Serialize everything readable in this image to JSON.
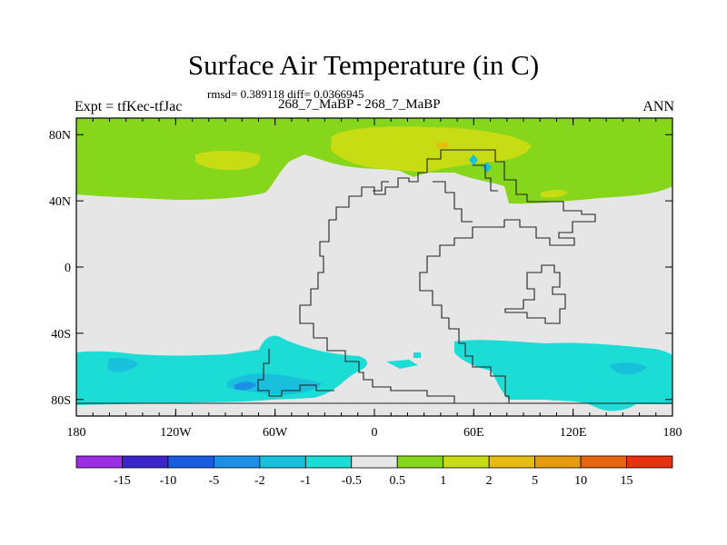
{
  "chart_data": {
    "type": "heatmap",
    "title": "Surface Air Temperature (in C)",
    "subtitle": "268_7_MaBP - 268_7_MaBP",
    "stats": "rmsd= 0.389118 diff= 0.0366945",
    "left_label": "Expt = tfKec-tfJac",
    "right_label": "ANN",
    "x_ticks": [
      "180",
      "120W",
      "60W",
      "0",
      "60E",
      "120E",
      "180"
    ],
    "y_ticks": [
      "80N",
      "40N",
      "0",
      "40S",
      "80S"
    ],
    "x_range": [
      -180,
      180
    ],
    "y_range": [
      -90,
      90
    ],
    "colorbar": {
      "labels": [
        "-15",
        "-10",
        "-5",
        "-2",
        "-1",
        "-0.5",
        "0.5",
        "1",
        "2",
        "5",
        "10",
        "15"
      ],
      "colors": [
        "#9b2ce6",
        "#3b24c9",
        "#1a5ce0",
        "#1e8fe6",
        "#18c0dc",
        "#1cdcd6",
        "#e6e6e6",
        "#86d61c",
        "#c8dc14",
        "#e6bc10",
        "#e69a10",
        "#e6640e",
        "#e6300e"
      ]
    },
    "regions": [
      {
        "level": "0.5 to 1",
        "color": "#86d61c",
        "description": "Northern high latitudes band"
      },
      {
        "level": "1 to 2",
        "color": "#c8dc14",
        "description": "Arctic patches"
      },
      {
        "level": "-1 to -0.5",
        "color": "#1cdcd6",
        "description": "Southern high latitudes band"
      },
      {
        "level": "-2 to -1",
        "color": "#18c0dc",
        "description": "Southern patches"
      }
    ]
  }
}
